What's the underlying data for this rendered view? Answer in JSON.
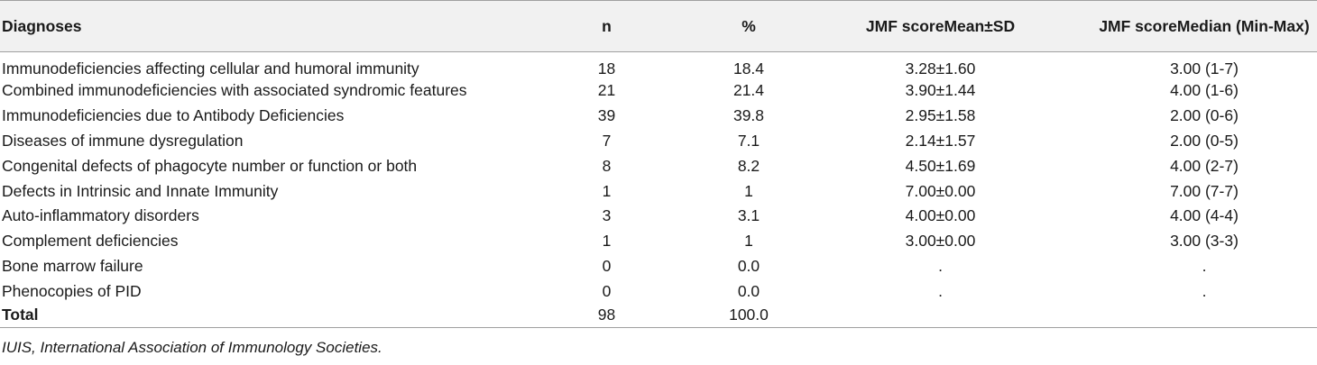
{
  "table": {
    "headers": {
      "diagnoses": "Diagnoses",
      "n": "n",
      "percent": "%",
      "mean": "JMF scoreMean±SD",
      "median": "JMF scoreMedian (Min-Max)"
    },
    "rows": [
      {
        "diagnosis": "Immunodeficiencies affecting cellular and humoral immunity",
        "n": "18",
        "percent": "18.4",
        "mean": "3.28±1.60",
        "median": "3.00 (1-7)"
      },
      {
        "diagnosis": "Combined immunodeficiencies with associated syndromic features",
        "n": "21",
        "percent": "21.4",
        "mean": "3.90±1.44",
        "median": "4.00 (1-6)"
      },
      {
        "diagnosis": "Immunodeficiencies due to Antibody Deficiencies",
        "n": "39",
        "percent": "39.8",
        "mean": "2.95±1.58",
        "median": "2.00 (0-6)"
      },
      {
        "diagnosis": "Diseases of immune dysregulation",
        "n": "7",
        "percent": "7.1",
        "mean": "2.14±1.57",
        "median": "2.00 (0-5)"
      },
      {
        "diagnosis": "Congenital defects of phagocyte number or function or both",
        "n": "8",
        "percent": "8.2",
        "mean": "4.50±1.69",
        "median": "4.00 (2-7)"
      },
      {
        "diagnosis": "Defects in Intrinsic and Innate Immunity",
        "n": "1",
        "percent": "1",
        "mean": "7.00±0.00",
        "median": "7.00 (7-7)"
      },
      {
        "diagnosis": "Auto-inflammatory disorders",
        "n": "3",
        "percent": "3.1",
        "mean": "4.00±0.00",
        "median": "4.00 (4-4)"
      },
      {
        "diagnosis": "Complement deficiencies",
        "n": "1",
        "percent": "1",
        "mean": "3.00±0.00",
        "median": "3.00 (3-3)"
      },
      {
        "diagnosis": "Bone marrow failure",
        "n": "0",
        "percent": "0.0",
        "mean": ".",
        "median": "."
      },
      {
        "diagnosis": "Phenocopies of PID",
        "n": "0",
        "percent": "0.0",
        "mean": ".",
        "median": "."
      }
    ],
    "total": {
      "diagnosis": "Total",
      "n": "98",
      "percent": "100.0",
      "mean": "",
      "median": ""
    }
  },
  "footnote": "IUIS, International Association of Immunology Societies."
}
